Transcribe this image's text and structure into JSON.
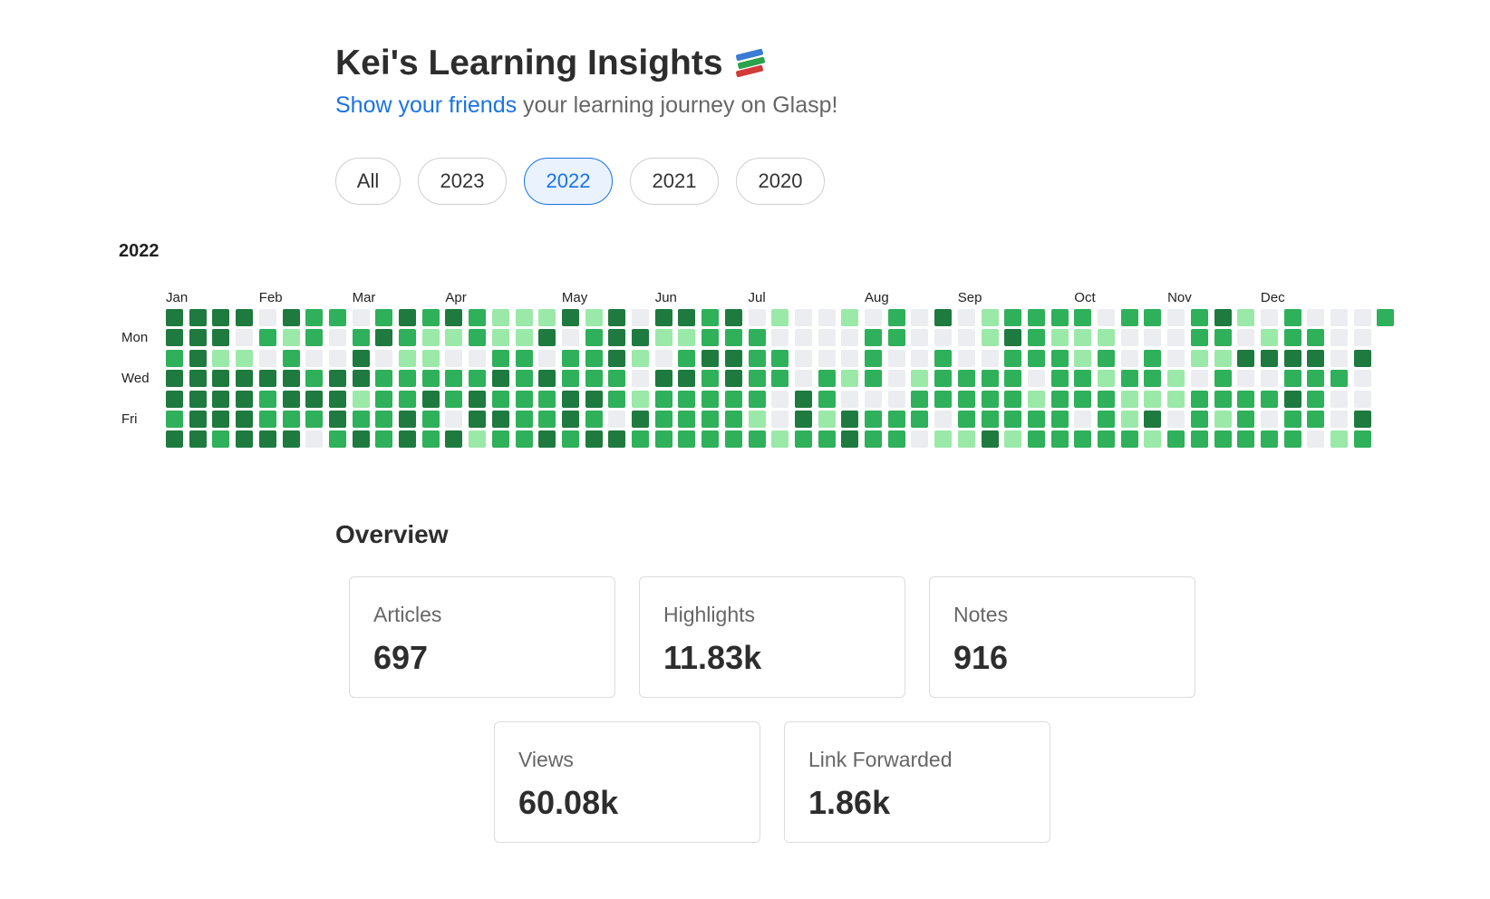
{
  "header": {
    "title": "Kei's Learning Insights",
    "title_icon": "books-icon",
    "subtitle_link": "Show your friends",
    "subtitle_rest": " your learning journey on Glasp!"
  },
  "year_tabs": [
    "All",
    "2023",
    "2022",
    "2021",
    "2020"
  ],
  "selected_year_tab": "2022",
  "heatmap": {
    "year_label": "2022",
    "months": [
      "Jan",
      "Feb",
      "Mar",
      "Apr",
      "May",
      "Jun",
      "Jul",
      "Aug",
      "Sep",
      "Oct",
      "Nov",
      "Dec"
    ],
    "month_start_weeks": [
      0,
      4,
      8,
      12,
      17,
      21,
      25,
      30,
      34,
      39,
      43,
      47
    ],
    "day_labels": [
      {
        "row": 1,
        "label": "Mon"
      },
      {
        "row": 3,
        "label": "Wed"
      },
      {
        "row": 5,
        "label": "Fri"
      }
    ],
    "colors": {
      "0": "#ebedf0",
      "1": "#9be9a8",
      "2": "#2fb05a",
      "3": "#1e7a3f"
    },
    "weeks": [
      [
        3,
        3,
        2,
        3,
        3,
        2,
        3
      ],
      [
        3,
        3,
        3,
        3,
        3,
        3,
        3
      ],
      [
        3,
        3,
        1,
        3,
        3,
        3,
        2
      ],
      [
        3,
        0,
        1,
        3,
        3,
        3,
        3
      ],
      [
        0,
        2,
        0,
        3,
        2,
        2,
        3
      ],
      [
        3,
        1,
        2,
        3,
        3,
        2,
        3
      ],
      [
        2,
        2,
        0,
        2,
        3,
        2,
        0
      ],
      [
        2,
        0,
        0,
        3,
        3,
        3,
        2
      ],
      [
        0,
        2,
        3,
        3,
        1,
        2,
        3
      ],
      [
        2,
        3,
        0,
        2,
        2,
        2,
        2
      ],
      [
        3,
        2,
        1,
        2,
        2,
        3,
        3
      ],
      [
        2,
        1,
        1,
        2,
        3,
        2,
        2
      ],
      [
        3,
        1,
        0,
        2,
        2,
        0,
        3
      ],
      [
        2,
        2,
        0,
        2,
        3,
        3,
        1
      ],
      [
        1,
        1,
        2,
        3,
        2,
        3,
        2
      ],
      [
        1,
        1,
        2,
        2,
        2,
        2,
        2
      ],
      [
        1,
        3,
        0,
        3,
        2,
        2,
        3
      ],
      [
        3,
        0,
        2,
        2,
        3,
        3,
        2
      ],
      [
        1,
        2,
        2,
        2,
        3,
        2,
        3
      ],
      [
        3,
        3,
        3,
        2,
        2,
        0,
        3
      ],
      [
        0,
        3,
        1,
        0,
        1,
        3,
        2
      ],
      [
        3,
        1,
        0,
        3,
        2,
        2,
        2
      ],
      [
        3,
        1,
        2,
        3,
        2,
        2,
        2
      ],
      [
        2,
        2,
        3,
        2,
        2,
        2,
        2
      ],
      [
        3,
        2,
        3,
        3,
        2,
        2,
        2
      ],
      [
        0,
        2,
        2,
        2,
        2,
        1,
        2
      ],
      [
        1,
        0,
        2,
        2,
        0,
        0,
        1
      ],
      [
        0,
        0,
        0,
        0,
        3,
        3,
        2
      ],
      [
        0,
        0,
        0,
        2,
        2,
        1,
        2
      ],
      [
        1,
        0,
        0,
        1,
        0,
        3,
        3
      ],
      [
        0,
        2,
        2,
        2,
        0,
        2,
        2
      ],
      [
        2,
        2,
        0,
        0,
        0,
        2,
        2
      ],
      [
        0,
        0,
        0,
        1,
        2,
        2,
        0
      ],
      [
        3,
        0,
        2,
        2,
        2,
        0,
        1
      ],
      [
        0,
        0,
        0,
        2,
        2,
        2,
        1
      ],
      [
        1,
        1,
        0,
        2,
        2,
        2,
        3
      ],
      [
        2,
        3,
        2,
        2,
        2,
        2,
        1
      ],
      [
        2,
        2,
        2,
        0,
        1,
        2,
        2
      ],
      [
        2,
        1,
        2,
        2,
        2,
        2,
        2
      ],
      [
        2,
        1,
        1,
        2,
        2,
        0,
        2
      ],
      [
        0,
        1,
        2,
        1,
        2,
        2,
        2
      ],
      [
        2,
        0,
        0,
        2,
        1,
        1,
        2
      ],
      [
        2,
        0,
        2,
        2,
        1,
        3,
        1
      ],
      [
        0,
        0,
        0,
        1,
        1,
        0,
        2
      ],
      [
        2,
        2,
        1,
        0,
        2,
        2,
        2
      ],
      [
        3,
        2,
        1,
        2,
        2,
        1,
        2
      ],
      [
        1,
        0,
        3,
        0,
        2,
        2,
        2
      ],
      [
        0,
        1,
        3,
        0,
        2,
        0,
        2
      ],
      [
        2,
        2,
        3,
        2,
        3,
        2,
        2
      ],
      [
        0,
        2,
        3,
        2,
        2,
        2,
        0
      ],
      [
        0,
        0,
        0,
        2,
        0,
        0,
        1
      ],
      [
        0,
        0,
        3,
        0,
        0,
        3,
        2
      ],
      [
        2
      ]
    ]
  },
  "overview": {
    "title": "Overview",
    "stats": [
      {
        "label": "Articles",
        "value": "697"
      },
      {
        "label": "Highlights",
        "value": "11.83k"
      },
      {
        "label": "Notes",
        "value": "916"
      },
      {
        "label": "Views",
        "value": "60.08k"
      },
      {
        "label": "Link Forwarded",
        "value": "1.86k"
      }
    ]
  }
}
